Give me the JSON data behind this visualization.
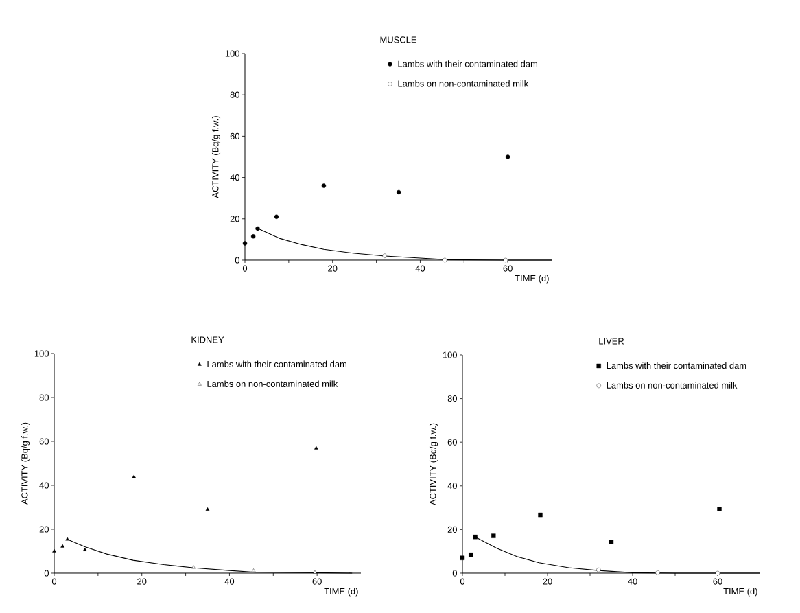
{
  "chart_data": [
    {
      "type": "scatter",
      "title": "MUSCLE",
      "xlabel": "TIME (d)",
      "ylabel": "ACTIVITY (Bq/g f.w.)",
      "xlim": [
        0,
        70
      ],
      "ylim": [
        0,
        100
      ],
      "xticks": [
        0,
        {
          "value": 10,
          "label": null
        },
        20,
        {
          "value": 30,
          "label": null
        },
        40,
        {
          "value": 50,
          "label": null
        },
        60
      ],
      "yticks": [
        0,
        20,
        40,
        60,
        80,
        100
      ],
      "legend": "top right",
      "series": [
        {
          "name": "Lambs with their contaminated dam",
          "marker": "circle",
          "color": "#000000",
          "x": [
            0,
            1.9,
            2.9,
            7.2,
            18,
            35.1,
            60
          ],
          "values": [
            8.1,
            11.5,
            15.3,
            21,
            36,
            32.9,
            50
          ]
        },
        {
          "name": "Lambs on non-contaminated milk",
          "marker": "circle",
          "color": "#ffffff",
          "x": [
            31.9,
            45.6,
            59.5
          ],
          "values": [
            2.1,
            0,
            0
          ]
        },
        {
          "type": "line",
          "marker": "none",
          "line_style": "solid",
          "color": "#000000",
          "x": [
            3,
            8,
            13,
            18,
            25,
            32,
            40,
            46,
            60,
            70
          ],
          "values": [
            15.3,
            10.5,
            7.5,
            5.2,
            3.3,
            2,
            1,
            0.2,
            0,
            0
          ]
        }
      ]
    },
    {
      "type": "scatter",
      "title": "KIDNEY",
      "xlabel": "TIME (d)",
      "ylabel": "ACTIVITY (Bq/g f.w.)",
      "xlim": [
        0,
        70
      ],
      "ylim": [
        0,
        100
      ],
      "xticks": [
        0,
        {
          "value": 10,
          "label": null
        },
        20,
        {
          "value": 30,
          "label": null
        },
        40,
        {
          "value": 50,
          "label": null
        },
        60
      ],
      "yticks": [
        0,
        20,
        40,
        60,
        80,
        100
      ],
      "legend": "top right",
      "series": [
        {
          "name": "Lambs with their contaminated dam",
          "marker": "triangle",
          "color": "#000000",
          "x": [
            0,
            1.9,
            3,
            7,
            18.2,
            35,
            59.8
          ],
          "values": [
            10,
            12.2,
            15.4,
            10.6,
            43.8,
            29,
            56.9
          ]
        },
        {
          "name": "Lambs on non-contaminated milk",
          "marker": "triangle",
          "color": "#ffffff",
          "x": [
            31.8,
            45.5,
            59.5
          ],
          "values": [
            2.6,
            1.1,
            0.3
          ]
        },
        {
          "type": "line",
          "marker": "none",
          "line_style": "solid",
          "color": "#000000",
          "x": [
            3,
            7,
            12,
            18,
            25,
            32,
            40,
            46,
            60,
            68
          ],
          "values": [
            15.4,
            12,
            8.7,
            5.9,
            3.9,
            2.4,
            1.2,
            0.4,
            0.2,
            0
          ]
        }
      ]
    },
    {
      "type": "scatter",
      "title": "LIVER",
      "xlabel": "TIME (d)",
      "ylabel": "ACTIVITY (Bq/g f.w.)",
      "xlim": [
        0,
        70
      ],
      "ylim": [
        0,
        100
      ],
      "xticks": [
        0,
        {
          "value": 10,
          "label": null
        },
        20,
        {
          "value": 30,
          "label": null
        },
        40,
        {
          "value": 50,
          "label": null
        },
        60
      ],
      "yticks": [
        0,
        20,
        40,
        60,
        80,
        100
      ],
      "legend": "top right",
      "series": [
        {
          "name": "Lambs with their contaminated dam",
          "marker": "square",
          "color": "#000000",
          "x": [
            0,
            2,
            3,
            7.3,
            18.3,
            35,
            60.4
          ],
          "values": [
            7,
            8.4,
            16.6,
            17.1,
            26.7,
            14.3,
            29.4
          ]
        },
        {
          "name": "Lambs on non-contaminated milk",
          "marker": "circle",
          "color": "#ffffff",
          "x": [
            32,
            45.9,
            60
          ],
          "values": [
            1.5,
            0.2,
            0
          ]
        },
        {
          "type": "line",
          "marker": "none",
          "line_style": "solid",
          "color": "#000000",
          "x": [
            3,
            8,
            13,
            18,
            25,
            32,
            40,
            50,
            70
          ],
          "values": [
            16.6,
            11.5,
            7.5,
            4.8,
            2.5,
            1.2,
            0.2,
            0,
            0
          ]
        }
      ]
    }
  ]
}
